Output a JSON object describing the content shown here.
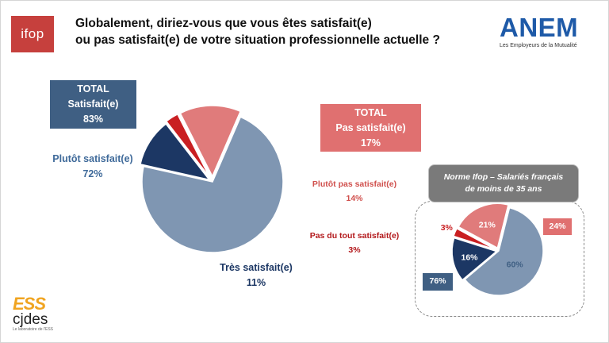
{
  "header": {
    "logo_text": "ifop",
    "title_line1": "Globalement, diriez-vous que vous êtes satisfait(e)",
    "title_line2": "ou pas satisfait(e) de votre situation professionnelle actuelle ?",
    "partner_logo": "ANEM",
    "partner_sub": "Les Employeurs de la Mutualité"
  },
  "totals": {
    "satisfied_title": "TOTAL",
    "satisfied_label": "Satisfait(e)",
    "satisfied_value": "83%",
    "unsatisfied_title": "TOTAL",
    "unsatisfied_label": "Pas satisfait(e)",
    "unsatisfied_value": "17%"
  },
  "main_labels": {
    "plutot_satisfait": "Plutôt satisfait(e)",
    "plutot_satisfait_value": "72%",
    "tres_satisfait": "Très satisfait(e)",
    "tres_satisfait_value": "11%",
    "plutot_pas": "Plutôt pas satisfait(e)",
    "plutot_pas_value": "14%",
    "pas_du_tout": "Pas du tout satisfait(e)",
    "pas_du_tout_value": "3%"
  },
  "norm": {
    "title_line1": "Norme Ifop – Salariés français",
    "title_line2": "de moins de 35 ans",
    "total_satisfied": "76%",
    "total_unsatisfied": "24%"
  },
  "footer": {
    "logo_ess": "ESS",
    "logo_cjdes": "cjdes",
    "logo_tagline": "Le laboratoire de l'ESS"
  },
  "colors": {
    "plutot_satisfait": "#7f96b2",
    "tres_satisfait": "#1c3764",
    "plutot_pas": "#e07b7b",
    "pas_du_tout": "#c91f22",
    "satisfied_box": "#3f5f83",
    "unsatisfied_box": "#e07070"
  },
  "chart_data": [
    {
      "type": "pie",
      "categories": [
        "Plutôt satisfait(e)",
        "Très satisfait(e)",
        "Pas du tout satisfait(e)",
        "Plutôt pas satisfait(e)"
      ],
      "values": [
        72,
        11,
        3,
        14
      ]
    },
    {
      "type": "pie",
      "title": "Norme Ifop – Salariés français de moins de 35 ans",
      "categories": [
        "Plutôt satisfait(e)",
        "Très satisfait(e)",
        "Pas du tout satisfait(e)",
        "Plutôt pas satisfait(e)"
      ],
      "values": [
        60,
        16,
        3,
        21
      ],
      "value_labels": [
        "60%",
        "16%",
        "3%",
        "21%"
      ]
    }
  ]
}
